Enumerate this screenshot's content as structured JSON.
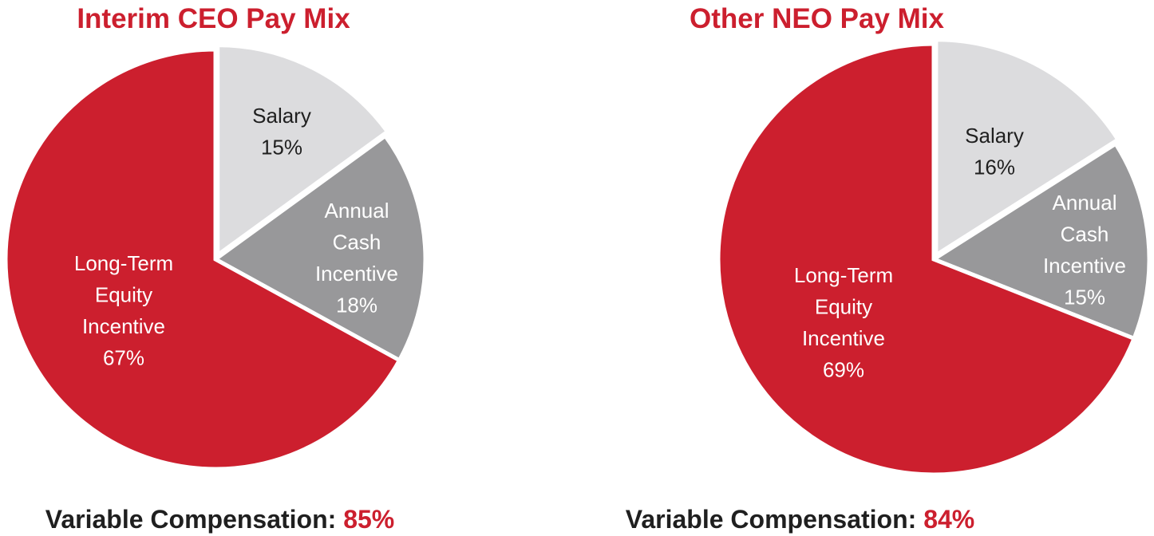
{
  "colors": {
    "title": "#cc1f2e",
    "salary": "#dcdcde",
    "annual": "#98989a",
    "equity": "#cc1f2e",
    "label_dark": "#1f1f1f",
    "label_light": "#ffffff",
    "footer": "#1f1f1f",
    "separator": "#ffffff"
  },
  "chart_data": [
    {
      "type": "pie",
      "title": "Interim CEO Pay Mix",
      "slices": [
        {
          "label_lines": [
            "Salary",
            "15%"
          ],
          "name": "Salary",
          "value": 15,
          "color_key": "salary",
          "text_key": "label_dark"
        },
        {
          "label_lines": [
            "Annual",
            "Cash",
            "Incentive",
            "18%"
          ],
          "name": "Annual Cash Incentive",
          "value": 18,
          "color_key": "annual",
          "text_key": "label_light"
        },
        {
          "label_lines": [
            "Long-Term",
            "Equity",
            "Incentive",
            "67%"
          ],
          "name": "Long-Term Equity Incentive",
          "value": 67,
          "color_key": "equity",
          "text_key": "label_light"
        }
      ],
      "footer_label": "Variable Compensation: ",
      "footer_value": "85%"
    },
    {
      "type": "pie",
      "title": "Other NEO Pay Mix",
      "slices": [
        {
          "label_lines": [
            "Salary",
            "16%"
          ],
          "name": "Salary",
          "value": 16,
          "color_key": "salary",
          "text_key": "label_dark"
        },
        {
          "label_lines": [
            "Annual",
            "Cash",
            "Incentive",
            "15%"
          ],
          "name": "Annual Cash Incentive",
          "value": 15,
          "color_key": "annual",
          "text_key": "label_light"
        },
        {
          "label_lines": [
            "Long-Term",
            "Equity",
            "Incentive",
            "69%"
          ],
          "name": "Long-Term Equity Incentive",
          "value": 69,
          "color_key": "equity",
          "text_key": "label_light"
        }
      ],
      "footer_label": "Variable Compensation: ",
      "footer_value": "84%"
    }
  ]
}
